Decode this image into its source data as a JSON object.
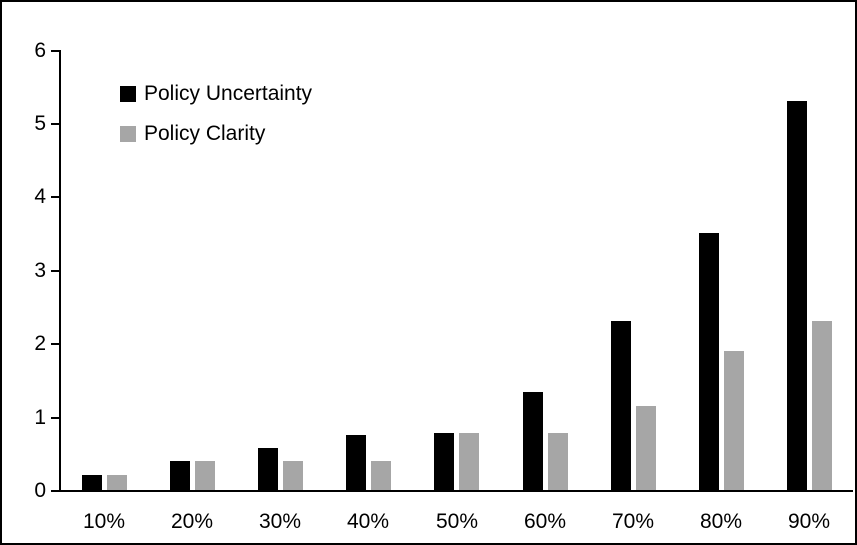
{
  "chart_data": {
    "type": "bar",
    "title": "",
    "xlabel": "",
    "ylabel": "",
    "categories": [
      "10%",
      "20%",
      "30%",
      "40%",
      "50%",
      "60%",
      "70%",
      "80%",
      "90%"
    ],
    "series": [
      {
        "name": "Policy Uncertainty",
        "color": "#000000",
        "values": [
          0.2,
          0.4,
          0.57,
          0.75,
          0.77,
          1.33,
          2.3,
          3.5,
          5.3
        ]
      },
      {
        "name": "Policy Clarity",
        "color": "#a6a6a6",
        "values": [
          0.2,
          0.4,
          0.4,
          0.4,
          0.77,
          0.77,
          1.15,
          1.9,
          2.3
        ]
      }
    ],
    "ylim": [
      0,
      6
    ],
    "yticks": [
      "0",
      "1",
      "2",
      "3",
      "4",
      "5",
      "6"
    ],
    "grid": false,
    "legend_position": "inside-top-left",
    "frame_color": "#000000",
    "background_color": "#ffffff"
  }
}
